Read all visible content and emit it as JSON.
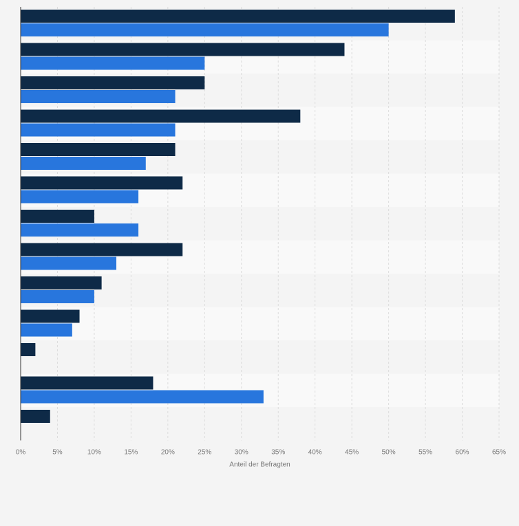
{
  "colors": {
    "background": "#f4f4f4",
    "band_alt": "#f9f9f9",
    "series_1": "#0e2a47",
    "series_2": "#2876dd",
    "grid": "#dcdcdc",
    "tick_text": "#777777"
  },
  "chart_data": {
    "type": "bar",
    "orientation": "horizontal",
    "categories": [
      "",
      "",
      "",
      "",
      "",
      "",
      "",
      "",
      "",
      "",
      "",
      "",
      ""
    ],
    "series": [
      {
        "values": [
          59,
          44,
          25,
          38,
          21,
          22,
          10,
          22,
          11,
          8,
          2,
          18,
          4
        ]
      },
      {
        "values": [
          50,
          25,
          21,
          21,
          17,
          16,
          16,
          13,
          10,
          7,
          null,
          33,
          null
        ]
      }
    ],
    "xlabel": "Anteil der Befragten",
    "ylabel": "",
    "xlim": [
      0,
      65
    ],
    "xticks": [
      0,
      5,
      10,
      15,
      20,
      25,
      30,
      35,
      40,
      45,
      50,
      55,
      60,
      65
    ],
    "xtick_labels": [
      "0%",
      "5%",
      "10%",
      "15%",
      "20%",
      "25%",
      "30%",
      "35%",
      "40%",
      "45%",
      "50%",
      "55%",
      "60%",
      "65%"
    ],
    "grid": true,
    "legend": "none"
  }
}
